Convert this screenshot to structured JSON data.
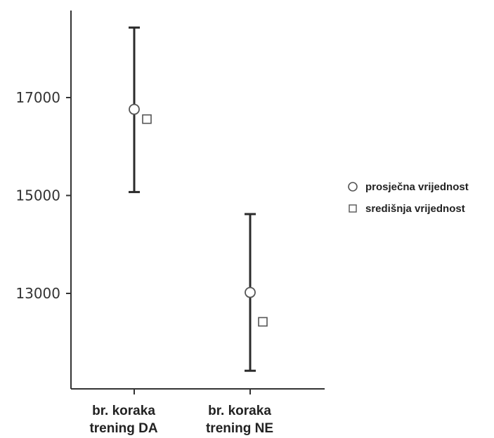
{
  "chart_data": {
    "type": "scatter",
    "title": "",
    "xlabel": "",
    "ylabel": "",
    "ylim": [
      11600,
      18400
    ],
    "yticks": [
      {
        "value": 13000,
        "label": "13000"
      },
      {
        "value": 15000,
        "label": "15000"
      },
      {
        "value": 17000,
        "label": "17000"
      }
    ],
    "categories": [
      {
        "line1": "br. koraka",
        "line2": "trening DA"
      },
      {
        "line1": "br. koraka",
        "line2": "trening NE"
      }
    ],
    "error_bars": [
      {
        "low": 15070,
        "high": 18430
      },
      {
        "low": 11420,
        "high": 14620
      }
    ],
    "series": [
      {
        "name": "prosječna vrijednost",
        "marker": "circle",
        "values": [
          16760,
          13020
        ]
      },
      {
        "name": "središnja vrijednost",
        "marker": "square",
        "values": [
          16560,
          12420
        ]
      }
    ],
    "legend_position": "right",
    "colors": {
      "axis": "#333333",
      "bar": "#2b2b2b",
      "marker_stroke": "#555555"
    }
  }
}
